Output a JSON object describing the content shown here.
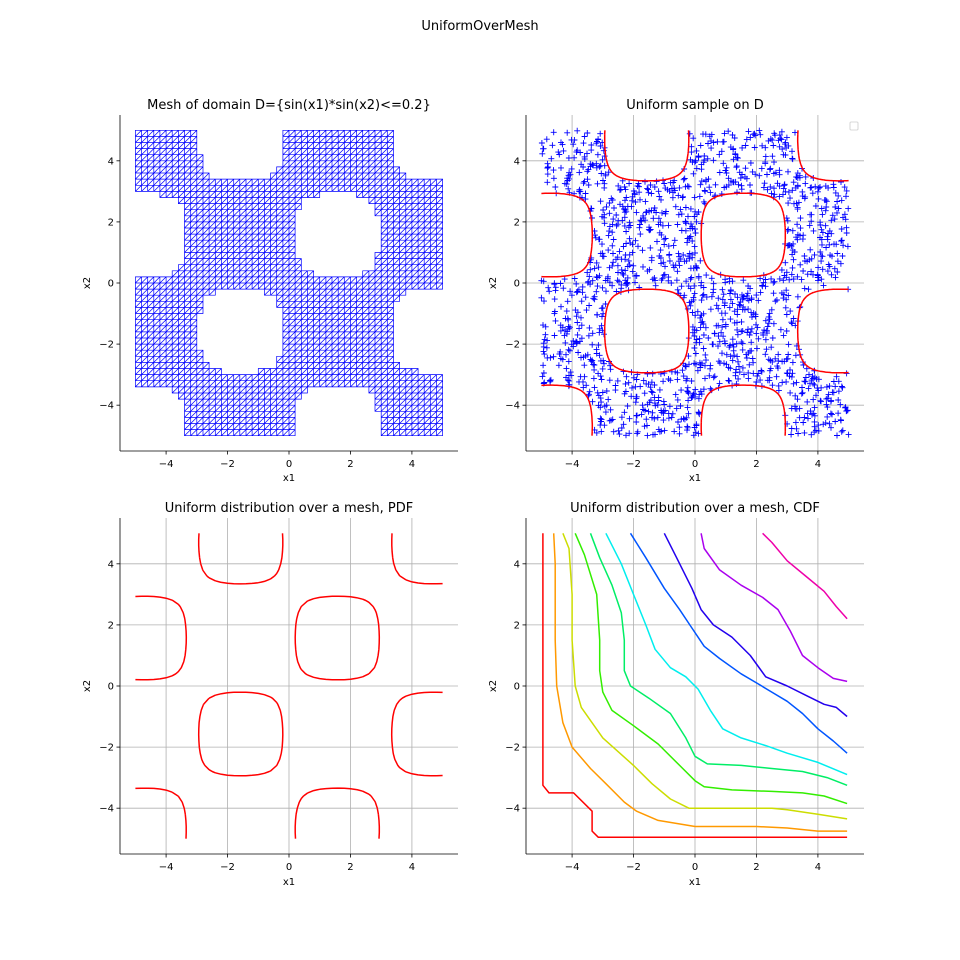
{
  "figure": {
    "title": "UniformOverMesh"
  },
  "chart_data": [
    {
      "id": "mesh",
      "type": "mesh",
      "title": "Mesh of domain D={sin(x1)*sin(x2)<=0.2}",
      "xlabel": "x1",
      "ylabel": "x2",
      "xlim": [
        -5.5,
        5.5
      ],
      "ylim": [
        -5.5,
        5.5
      ],
      "xticks": [
        -4,
        -2,
        0,
        2,
        4
      ],
      "yticks": [
        -4,
        -2,
        0,
        2,
        4
      ],
      "xtick_labels": [
        "−4",
        "−2",
        "0",
        "2",
        "4"
      ],
      "ytick_labels": [
        "−4",
        "−2",
        "0",
        "2",
        "4"
      ],
      "grid": false,
      "domain": {
        "x": [
          -5,
          5
        ],
        "y": [
          -5,
          5
        ],
        "condition": "sin(x1)*sin(x2)<=0.2",
        "threshold": 0.2
      },
      "mesh_color": "#0000ff"
    },
    {
      "id": "sample",
      "type": "scatter",
      "title": "Uniform sample on D",
      "xlabel": "x1",
      "ylabel": "x2",
      "xlim": [
        -5.5,
        5.5
      ],
      "ylim": [
        -5.5,
        5.5
      ],
      "xticks": [
        -4,
        -2,
        0,
        2,
        4
      ],
      "yticks": [
        -4,
        -2,
        0,
        2,
        4
      ],
      "xtick_labels": [
        "−4",
        "−2",
        "0",
        "2",
        "4"
      ],
      "ytick_labels": [
        "−4",
        "−2",
        "0",
        "2",
        "4"
      ],
      "grid": true,
      "legend": "top-right",
      "marker": "+",
      "marker_color": "#0000ff",
      "boundary_color": "#ff0000",
      "sample_size": 1500,
      "boundary_level": 0.2
    },
    {
      "id": "pdf",
      "type": "contour",
      "title": "Uniform distribution over a mesh, PDF",
      "xlabel": "x1",
      "ylabel": "x2",
      "xlim": [
        -5.5,
        5.5
      ],
      "ylim": [
        -5.5,
        5.5
      ],
      "xticks": [
        -4,
        -2,
        0,
        2,
        4
      ],
      "yticks": [
        -4,
        -2,
        0,
        2,
        4
      ],
      "xtick_labels": [
        "−4",
        "−2",
        "0",
        "2",
        "4"
      ],
      "ytick_labels": [
        "−4",
        "−2",
        "0",
        "2",
        "4"
      ],
      "grid": true,
      "line_color": "#ff0000",
      "boundary_level": 0.2
    },
    {
      "id": "cdf",
      "type": "contour",
      "title": "Uniform distribution over a mesh, CDF",
      "xlabel": "x1",
      "ylabel": "x2",
      "xlim": [
        -5.5,
        5.5
      ],
      "ylim": [
        -5.5,
        5.5
      ],
      "xticks": [
        -4,
        -2,
        0,
        2,
        4
      ],
      "yticks": [
        -4,
        -2,
        0,
        2,
        4
      ],
      "xtick_labels": [
        "−4",
        "−2",
        "0",
        "2",
        "4"
      ],
      "ytick_labels": [
        "−4",
        "−2",
        "0",
        "2",
        "4"
      ],
      "grid": true,
      "levels": [
        {
          "color": "#ff0000",
          "points": [
            [
              -4.95,
              5.0
            ],
            [
              -4.95,
              -3.25
            ],
            [
              -4.75,
              -3.5
            ],
            [
              -3.95,
              -3.5
            ],
            [
              -3.35,
              -4.1
            ],
            [
              -3.35,
              -4.75
            ],
            [
              -3.15,
              -4.95
            ],
            [
              4.95,
              -4.95
            ]
          ]
        },
        {
          "color": "#ff9900",
          "points": [
            [
              -4.6,
              5.0
            ],
            [
              -4.55,
              4.0
            ],
            [
              -4.55,
              1.5
            ],
            [
              -4.5,
              0.0
            ],
            [
              -4.3,
              -1.2
            ],
            [
              -4.0,
              -2.0
            ],
            [
              -3.4,
              -2.7
            ],
            [
              -2.9,
              -3.2
            ],
            [
              -2.3,
              -3.8
            ],
            [
              -1.9,
              -4.1
            ],
            [
              -1.2,
              -4.4
            ],
            [
              0.0,
              -4.6
            ],
            [
              2.0,
              -4.6
            ],
            [
              3.0,
              -4.65
            ],
            [
              4.0,
              -4.75
            ],
            [
              4.95,
              -4.75
            ]
          ]
        },
        {
          "color": "#ccdd00",
          "points": [
            [
              -4.3,
              5.0
            ],
            [
              -4.1,
              4.5
            ],
            [
              -4.0,
              3.0
            ],
            [
              -4.0,
              1.5
            ],
            [
              -3.9,
              0.0
            ],
            [
              -3.7,
              -0.7
            ],
            [
              -3.0,
              -1.7
            ],
            [
              -2.0,
              -2.6
            ],
            [
              -1.4,
              -3.2
            ],
            [
              -0.8,
              -3.7
            ],
            [
              -0.2,
              -4.0
            ],
            [
              1.0,
              -4.0
            ],
            [
              2.5,
              -4.0
            ],
            [
              3.0,
              -4.05
            ],
            [
              4.0,
              -4.2
            ],
            [
              4.95,
              -4.35
            ]
          ]
        },
        {
          "color": "#33ee00",
          "points": [
            [
              -3.9,
              5.0
            ],
            [
              -3.6,
              4.3
            ],
            [
              -3.2,
              3.0
            ],
            [
              -3.1,
              1.5
            ],
            [
              -3.1,
              0.5
            ],
            [
              -3.0,
              -0.2
            ],
            [
              -2.7,
              -0.8
            ],
            [
              -2.0,
              -1.3
            ],
            [
              -1.2,
              -1.9
            ],
            [
              -0.5,
              -2.6
            ],
            [
              0.0,
              -3.1
            ],
            [
              0.3,
              -3.3
            ],
            [
              1.2,
              -3.4
            ],
            [
              2.5,
              -3.45
            ],
            [
              3.5,
              -3.5
            ],
            [
              4.2,
              -3.6
            ],
            [
              4.95,
              -3.85
            ]
          ]
        },
        {
          "color": "#00ee66",
          "points": [
            [
              -3.4,
              5.0
            ],
            [
              -3.1,
              4.2
            ],
            [
              -2.7,
              3.3
            ],
            [
              -2.4,
              2.4
            ],
            [
              -2.3,
              1.5
            ],
            [
              -2.3,
              0.5
            ],
            [
              -2.1,
              0.0
            ],
            [
              -1.5,
              -0.4
            ],
            [
              -0.8,
              -0.9
            ],
            [
              -0.3,
              -1.7
            ],
            [
              0.0,
              -2.3
            ],
            [
              0.4,
              -2.55
            ],
            [
              1.5,
              -2.6
            ],
            [
              2.5,
              -2.7
            ],
            [
              3.5,
              -2.8
            ],
            [
              4.3,
              -3.0
            ],
            [
              4.95,
              -3.25
            ]
          ]
        },
        {
          "color": "#00eeee",
          "points": [
            [
              -2.9,
              5.0
            ],
            [
              -2.4,
              4.0
            ],
            [
              -2.0,
              3.0
            ],
            [
              -1.6,
              2.0
            ],
            [
              -1.3,
              1.2
            ],
            [
              -0.8,
              0.6
            ],
            [
              -0.3,
              0.3
            ],
            [
              0.1,
              -0.1
            ],
            [
              0.5,
              -0.8
            ],
            [
              0.9,
              -1.4
            ],
            [
              1.5,
              -1.7
            ],
            [
              2.3,
              -1.95
            ],
            [
              3.0,
              -2.2
            ],
            [
              4.0,
              -2.5
            ],
            [
              4.95,
              -2.9
            ]
          ]
        },
        {
          "color": "#0055ff",
          "points": [
            [
              -2.1,
              5.0
            ],
            [
              -1.6,
              4.2
            ],
            [
              -1.0,
              3.2
            ],
            [
              -0.5,
              2.5
            ],
            [
              -0.1,
              1.9
            ],
            [
              0.3,
              1.3
            ],
            [
              0.8,
              0.9
            ],
            [
              1.5,
              0.4
            ],
            [
              2.0,
              0.1
            ],
            [
              2.5,
              -0.2
            ],
            [
              3.0,
              -0.5
            ],
            [
              3.5,
              -0.9
            ],
            [
              4.0,
              -1.4
            ],
            [
              4.5,
              -1.8
            ],
            [
              4.95,
              -2.2
            ]
          ]
        },
        {
          "color": "#2200ee",
          "points": [
            [
              -1.0,
              5.0
            ],
            [
              -0.6,
              4.2
            ],
            [
              -0.1,
              3.2
            ],
            [
              0.2,
              2.5
            ],
            [
              0.6,
              2.0
            ],
            [
              1.2,
              1.6
            ],
            [
              1.8,
              1.0
            ],
            [
              2.3,
              0.3
            ],
            [
              3.0,
              0.0
            ],
            [
              3.6,
              -0.3
            ],
            [
              4.2,
              -0.6
            ],
            [
              4.6,
              -0.7
            ],
            [
              4.95,
              -1.0
            ]
          ]
        },
        {
          "color": "#aa00ee",
          "points": [
            [
              0.2,
              5.0
            ],
            [
              0.3,
              4.5
            ],
            [
              0.8,
              3.8
            ],
            [
              1.5,
              3.3
            ],
            [
              2.2,
              2.9
            ],
            [
              2.7,
              2.5
            ],
            [
              3.1,
              1.8
            ],
            [
              3.5,
              1.0
            ],
            [
              4.0,
              0.6
            ],
            [
              4.5,
              0.25
            ],
            [
              4.95,
              0.15
            ]
          ]
        },
        {
          "color": "#ee00aa",
          "points": [
            [
              2.2,
              5.0
            ],
            [
              2.5,
              4.7
            ],
            [
              3.0,
              4.1
            ],
            [
              3.6,
              3.6
            ],
            [
              4.2,
              3.1
            ],
            [
              4.6,
              2.6
            ],
            [
              4.95,
              2.2
            ]
          ]
        }
      ]
    }
  ]
}
